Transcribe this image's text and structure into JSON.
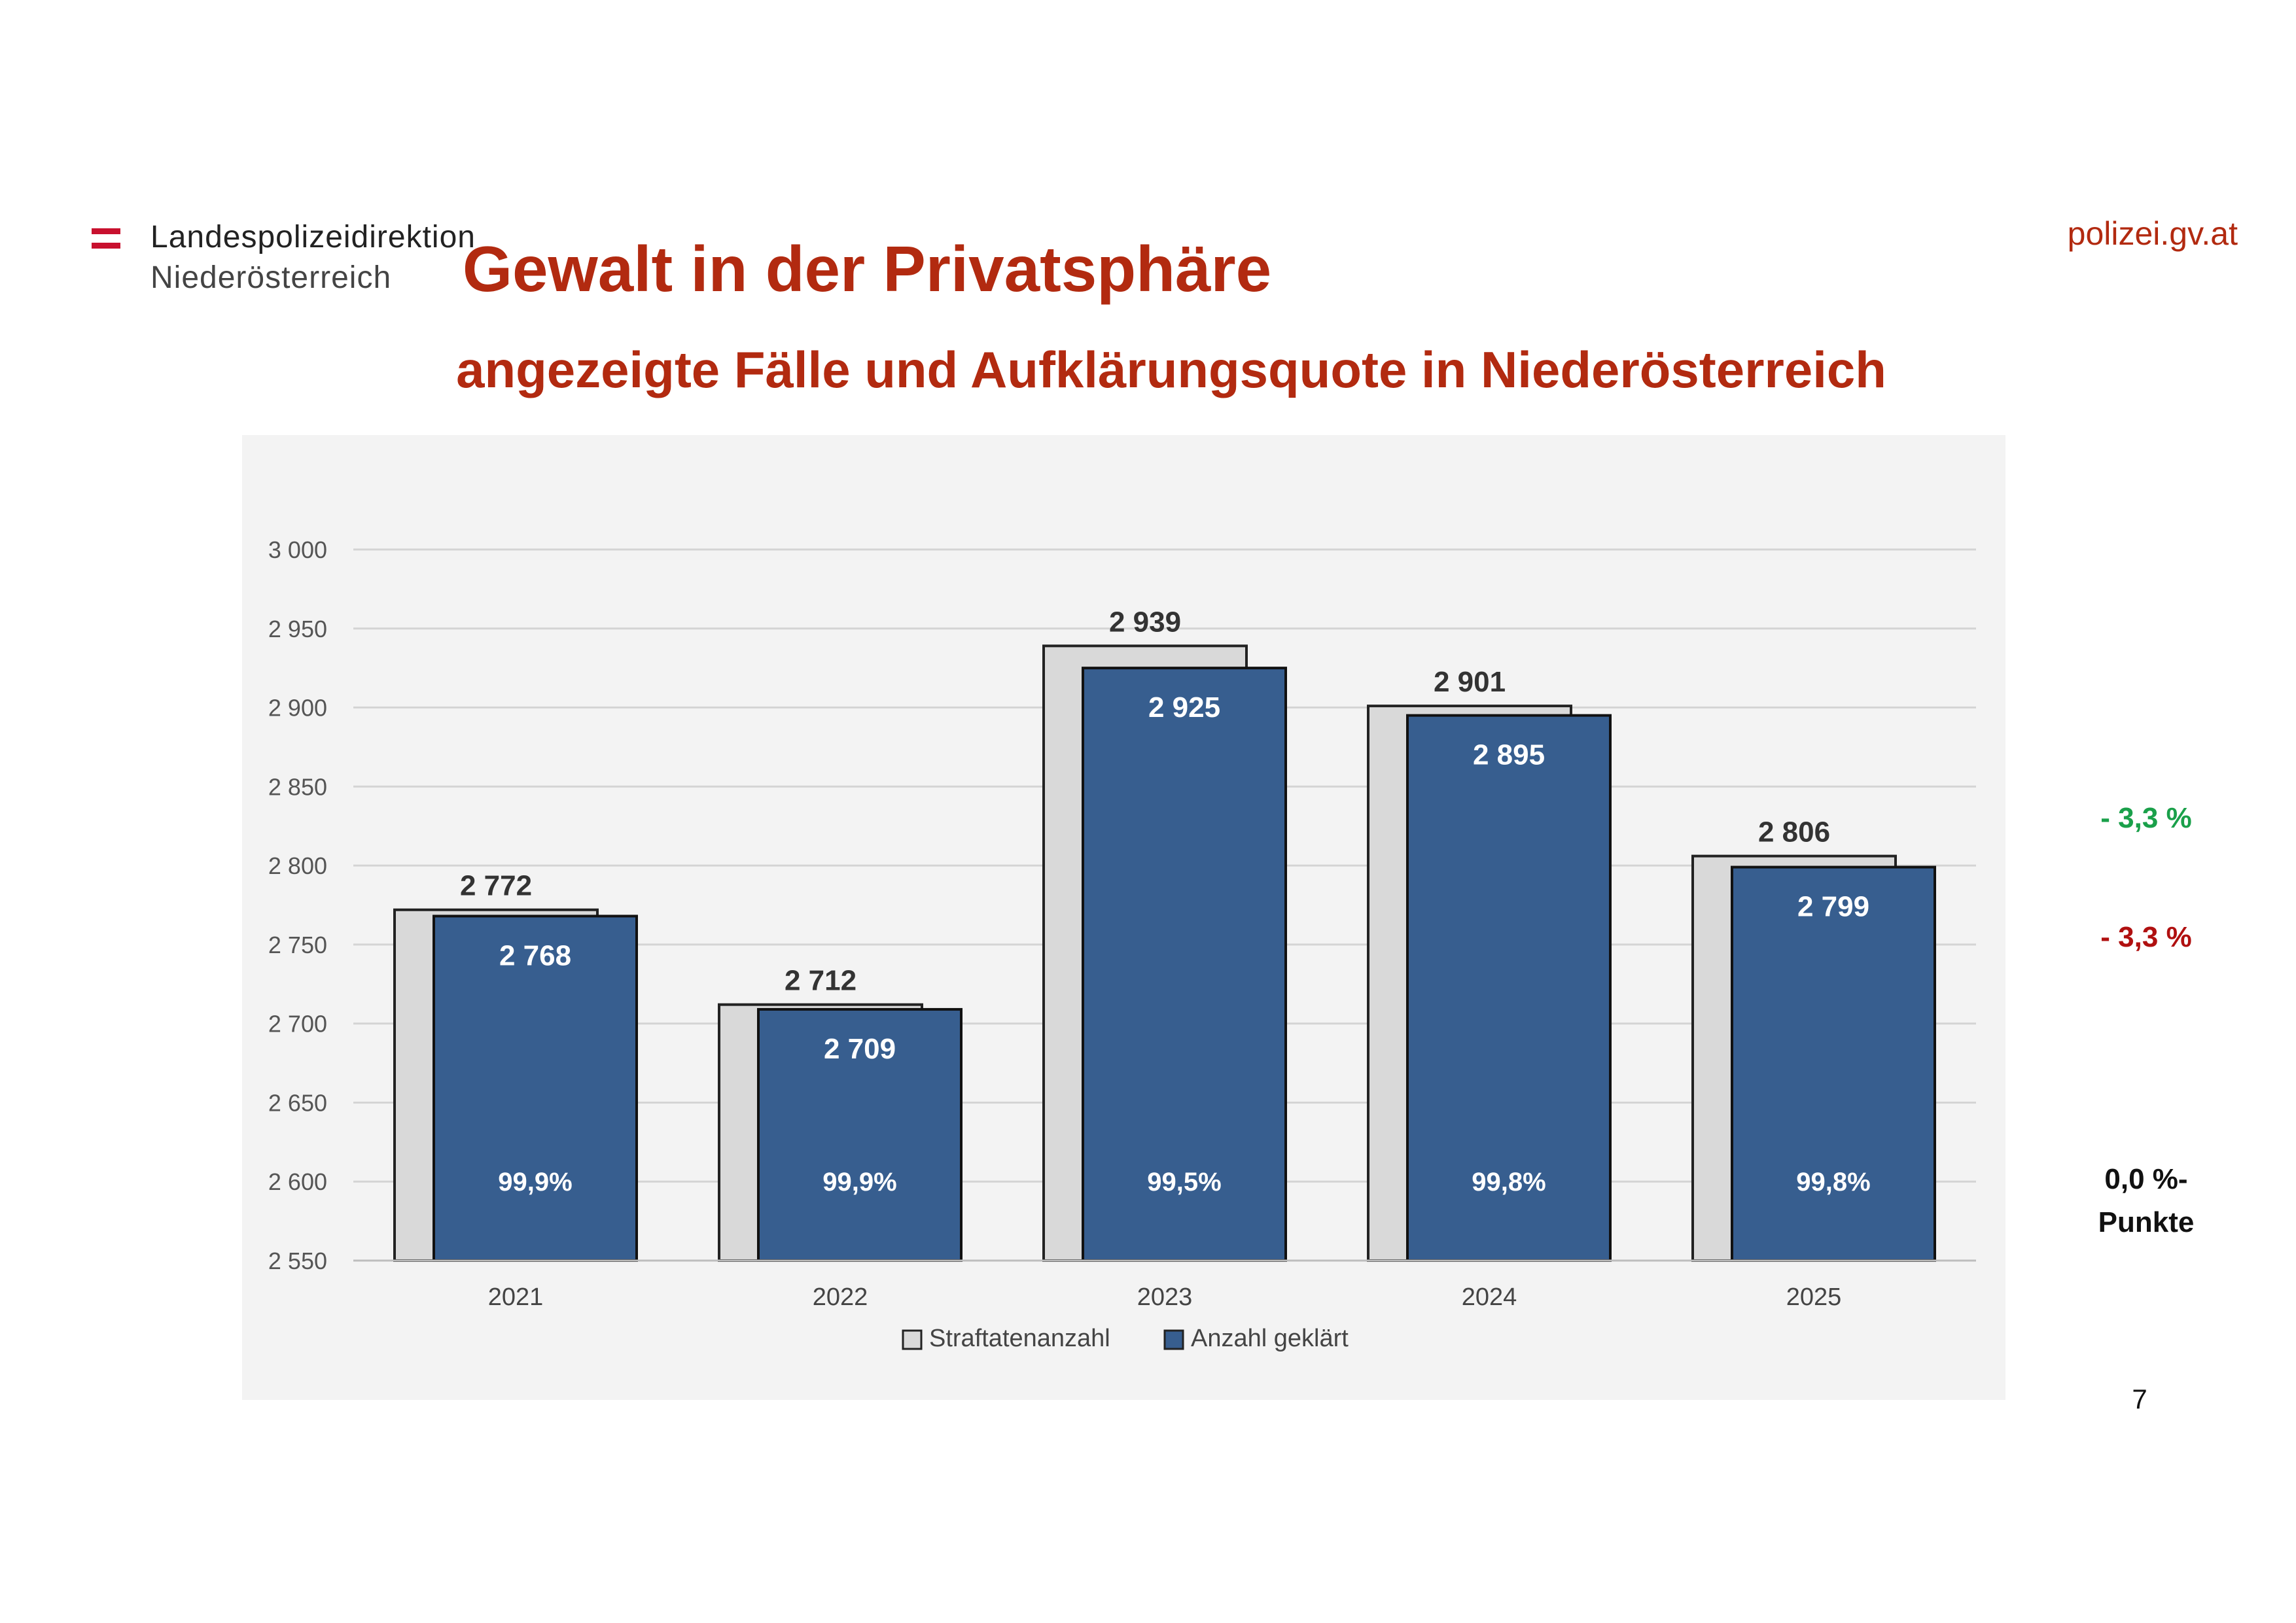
{
  "header": {
    "logo_line1": "Landespolizeidirektion",
    "logo_line2": "Niederösterreich",
    "site": "polizei.gv.at",
    "title": "Gewalt in der Privatsphäre",
    "subtitle": "angezeigte Fälle und Aufklärungsquote in Niederösterreich"
  },
  "chart_data": {
    "type": "bar",
    "title": "",
    "xlabel": "",
    "ylabel": "",
    "ylim": [
      2550,
      3000
    ],
    "y_ticks": [
      2550,
      2600,
      2650,
      2700,
      2750,
      2800,
      2850,
      2900,
      2950,
      3000
    ],
    "y_tick_labels": [
      "2 550",
      "2 600",
      "2 650",
      "2 700",
      "2 750",
      "2 800",
      "2 850",
      "2 900",
      "2 950",
      "3 000"
    ],
    "grid": true,
    "legend_position": "bottom",
    "categories": [
      "2021",
      "2022",
      "2023",
      "2024",
      "2025"
    ],
    "series": [
      {
        "name": "Straftatenanzahl",
        "color": "#d9d9d9",
        "values": [
          2772,
          2712,
          2939,
          2901,
          2806
        ],
        "labels": [
          "2 772",
          "2 712",
          "2 939",
          "2 901",
          "2 806"
        ]
      },
      {
        "name": "Anzahl geklärt",
        "color": "#375e8f",
        "values": [
          2768,
          2709,
          2925,
          2895,
          2799
        ],
        "labels": [
          "2 768",
          "2 709",
          "2 925",
          "2 895",
          "2 799"
        ]
      }
    ],
    "clearance_rates": [
      "99,9%",
      "99,9%",
      "99,5%",
      "99,8%",
      "99,8%"
    ]
  },
  "side_notes": {
    "change_total": "- 3,3 %",
    "change_cleared": "- 3,3 %",
    "change_rate_line1": "0,0 %-",
    "change_rate_line2": "Punkte",
    "total_color": "#1aa04a",
    "cleared_color": "#b01010"
  },
  "page_number": "7",
  "colors": {
    "accent": "#b22a10",
    "bar_total": "#d9d9d9",
    "bar_cleared": "#375e8f"
  }
}
